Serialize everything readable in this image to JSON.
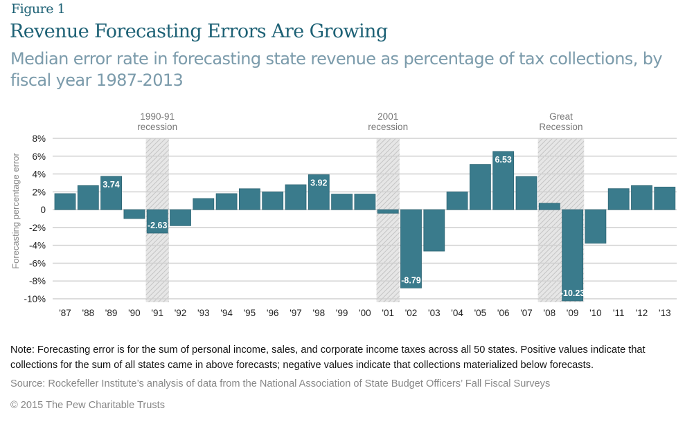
{
  "figure_label": "Figure 1",
  "title": "Revenue Forecasting Errors Are Growing",
  "subtitle": "Median error rate in forecasting state revenue as percentage of tax collections, by fiscal year 1987-2013",
  "note": "Note: Forecasting error is for the sum of personal income, sales, and corporate income taxes across all 50 states. Positive values indicate that collections for the sum of all states came in above forecasts; negative values indicate that collections materialized below forecasts.",
  "source": "Source: Rockefeller Institute’s analysis of data from the National Association of State Budget Officers’ Fall Fiscal Surveys",
  "copyright": "© 2015 The Pew Charitable Trusts",
  "colors": {
    "bar": "#3a7b8c",
    "title": "#1d6175",
    "subtitle": "#7b9bab",
    "recession_shade": "#d9d9d9",
    "grid": "#d0d0d0"
  },
  "chart_data": {
    "type": "bar",
    "ylabel": "Forecasting percentage error",
    "ylim": [
      -10,
      8
    ],
    "yticks": [
      8,
      6,
      4,
      2,
      0,
      -2,
      -4,
      -6,
      -8,
      -10
    ],
    "ytick_labels": [
      "8%",
      "6%",
      "4%",
      "2%",
      "0",
      "-2%",
      "-4%",
      "-6%",
      "-8%",
      "-10%"
    ],
    "grid": true,
    "categories": [
      "'87",
      "'88",
      "'89",
      "'90",
      "'91",
      "'92",
      "'93",
      "'94",
      "'95",
      "'96",
      "'97",
      "'98",
      "'99",
      "'00",
      "'01",
      "'02",
      "'03",
      "'04",
      "'05",
      "'06",
      "'07",
      "'08",
      "'09",
      "'10",
      "'11",
      "'12",
      "'13"
    ],
    "values": [
      1.8,
      2.7,
      3.74,
      -1.0,
      -2.63,
      -1.8,
      1.25,
      1.8,
      2.35,
      2.0,
      2.8,
      3.92,
      1.75,
      1.75,
      -0.4,
      -8.79,
      -4.65,
      2.0,
      5.08,
      6.53,
      3.72,
      0.72,
      -10.23,
      -3.77,
      2.36,
      2.7,
      2.54
    ],
    "data_labels": {
      "'89": "3.74",
      "'91": "-2.63",
      "'98": "3.92",
      "'02": "-8.79",
      "'06": "6.53",
      "'09": "-10.23"
    },
    "recessions": [
      {
        "label_line1": "1990-91",
        "label_line2": "recession",
        "from": "'91",
        "to": "'91"
      },
      {
        "label_line1": "2001",
        "label_line2": "recession",
        "from": "'01",
        "to": "'01"
      },
      {
        "label_line1": "Great",
        "label_line2": "Recession",
        "from": "'08",
        "to": "'09"
      }
    ]
  }
}
